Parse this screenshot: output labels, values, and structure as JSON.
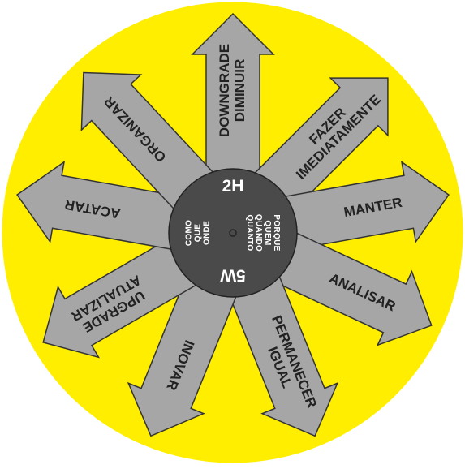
{
  "colors": {
    "background_disc": "#ffee00",
    "arrow_fill": "#a6a6a6",
    "arrow_stroke": "#333333",
    "hub_fill": "#4a4a4a",
    "hub_text": "#ffffff",
    "label_text": "#222222"
  },
  "hub": {
    "top_label": "2H",
    "bottom_label": "5W",
    "left_words": [
      "COMO",
      "QUE",
      "ONDE"
    ],
    "right_words": [
      "PORQUE",
      "QUEM",
      "QUANDO",
      "QUANTO"
    ]
  },
  "arrows": [
    {
      "id": "downgrade",
      "lines": [
        "DOWNGRADE",
        "DIMINUIR"
      ],
      "direction_deg": -90
    },
    {
      "id": "fazer",
      "lines": [
        "FAZER",
        "IMEDIATAMENTE"
      ],
      "direction_deg": -45
    },
    {
      "id": "manter",
      "lines": [
        "MANTER"
      ],
      "direction_deg": -10
    },
    {
      "id": "analisar",
      "lines": [
        "ANALISAR"
      ],
      "direction_deg": 25
    },
    {
      "id": "permanecer",
      "lines": [
        "PERMANECER",
        "IGUAL"
      ],
      "direction_deg": 68
    },
    {
      "id": "inovar",
      "lines": [
        "INOVAR"
      ],
      "direction_deg": 112
    },
    {
      "id": "upgrade",
      "lines": [
        "UPGRADE",
        "ATUALIZAR"
      ],
      "direction_deg": 150
    },
    {
      "id": "acatar",
      "lines": [
        "ACATAR"
      ],
      "direction_deg": 190
    },
    {
      "id": "organizar",
      "lines": [
        "ORGANIZAR"
      ],
      "direction_deg": 227
    }
  ]
}
